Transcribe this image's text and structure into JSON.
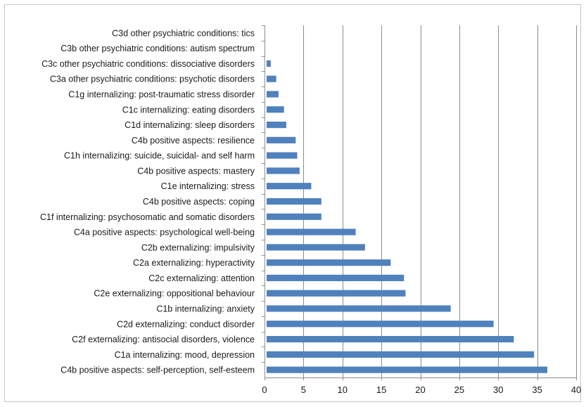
{
  "chart_data": {
    "type": "bar",
    "orientation": "horizontal",
    "title": "",
    "xlabel": "",
    "ylabel": "",
    "xlim": [
      0,
      40
    ],
    "xticks": [
      0,
      5,
      10,
      15,
      20,
      25,
      30,
      35,
      40
    ],
    "grid": true,
    "legend": "none",
    "bar_color": "#4f81bd",
    "categories": [
      "C3d other psychiatric conditions: tics",
      "C3b other psychiatric conditions: autism spectrum",
      "C3c other psychiatric conditions: dissociative disorders",
      "C3a other psychiatric conditions: psychotic disorders",
      "C1g internalizing: post-traumatic stress disorder",
      "C1c internalizing: eating disorders",
      "C1d internalizing: sleep disorders",
      "C4b positive aspects: resilience",
      "C1h internalizing: suicide, suicidal- and self harm",
      "C4b positive aspects: mastery",
      "C1e internalizing: stress",
      "C4b positive aspects: coping",
      "C1f internalizing: psychosomatic and somatic disorders",
      "C4a positive aspects: psychological well-being",
      "C2b externalizing: impulsivity",
      "C2a externalizing: hyperactivity",
      "C2c externalizing: attention",
      "C2e externalizing: oppositional behaviour",
      "C1b internalizing: anxiety",
      "C2d externalizing: conduct disorder",
      "C2f externalizing: antisocial disorders, violence",
      "C1a internalizing: mood, depression",
      "C4b positive aspects: self-perception, self-esteem"
    ],
    "values": [
      0,
      0.1,
      0.8,
      1.5,
      1.8,
      2.5,
      2.8,
      4.0,
      4.2,
      4.5,
      6.0,
      7.3,
      7.3,
      11.7,
      12.9,
      16.2,
      17.9,
      18.1,
      23.9,
      29.4,
      32.0,
      34.6,
      36.3
    ]
  }
}
